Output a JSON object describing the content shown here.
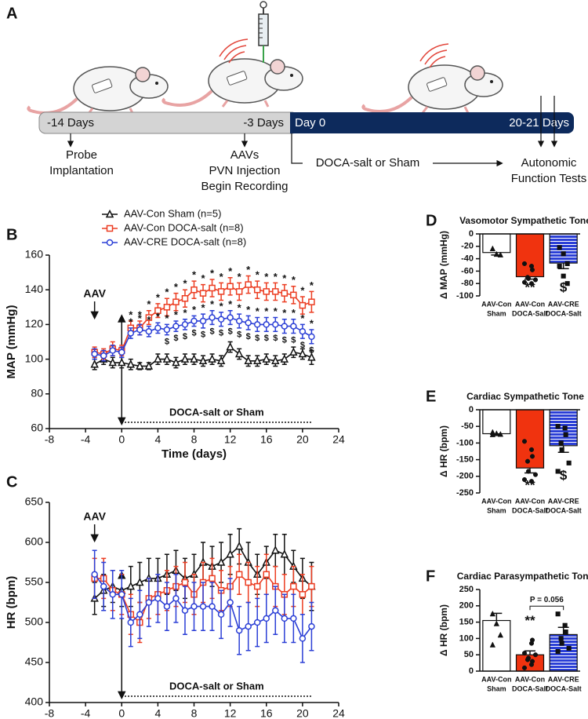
{
  "panel_a": {
    "label": "A",
    "timeline": [
      "-14 Days",
      "-3 Days",
      "Day 0",
      "20-21 Days"
    ],
    "events": [
      [
        "Probe",
        "Implantation"
      ],
      [
        "AAVs",
        "PVN Injection",
        "Begin Recording"
      ],
      [
        "DOCA-salt or Sham"
      ],
      [
        "Autonomic",
        "Function Tests"
      ]
    ]
  },
  "chart_data": [
    {
      "type": "line",
      "panel": "B",
      "x_label": "Time (days)",
      "y_label": "MAP (mmHg)",
      "xlim": [
        -8,
        24
      ],
      "xticks": [
        -8,
        -4,
        0,
        4,
        8,
        12,
        16,
        20,
        24
      ],
      "ylim": [
        60,
        160
      ],
      "yticks": [
        60,
        80,
        100,
        120,
        140,
        160
      ],
      "legend": "upper left",
      "pre_label": "AAV",
      "intervention": {
        "label": "DOCA-salt or Sham",
        "start": 0,
        "end": 21
      },
      "x": [
        -3,
        -2,
        -1,
        0,
        1,
        2,
        3,
        4,
        5,
        6,
        7,
        8,
        9,
        10,
        11,
        12,
        13,
        14,
        15,
        16,
        17,
        18,
        19,
        20,
        21
      ],
      "series": [
        {
          "name": "AAV-Con Sham (n=5)",
          "color": "#111111",
          "marker": "triangle",
          "values": [
            97,
            100,
            98,
            98,
            97,
            96,
            96,
            100,
            100,
            98,
            100,
            100,
            99,
            100,
            99,
            107,
            103,
            99,
            99,
            100,
            99,
            100,
            104,
            103,
            101
          ],
          "errors": [
            3,
            3,
            3,
            3,
            3,
            2,
            2,
            3,
            3,
            3,
            3,
            3,
            3,
            3,
            3,
            3,
            3,
            3,
            3,
            3,
            3,
            3,
            3,
            3,
            4
          ]
        },
        {
          "name": "AAV-Con DOCA-salt (n=8)",
          "color": "#ec3d22",
          "marker": "square",
          "values": [
            104,
            103,
            106,
            105,
            118,
            118,
            124,
            128,
            130,
            133,
            135,
            140,
            138,
            141,
            139,
            142,
            139,
            143,
            140,
            139,
            139,
            138,
            137,
            131,
            133
          ],
          "errors": [
            3,
            3,
            4,
            3,
            4,
            4,
            4,
            4,
            5,
            5,
            5,
            5,
            5,
            5,
            5,
            5,
            5,
            5,
            5,
            5,
            5,
            5,
            5,
            5,
            6
          ],
          "above_labels": [
            null,
            null,
            null,
            null,
            "*",
            "*",
            "*",
            "*",
            "*",
            "*",
            "*",
            "*",
            "*",
            "*",
            "*",
            "*",
            "*",
            "*",
            "*",
            "*",
            "*",
            "*",
            "*",
            "*",
            "*"
          ]
        },
        {
          "name": "AAV-CRE DOCA-salt (n=8)",
          "color": "#2b3fd6",
          "marker": "circle",
          "values": [
            103,
            102,
            105,
            104,
            115,
            117,
            116,
            118,
            117,
            119,
            120,
            122,
            122,
            124,
            123,
            124,
            122,
            121,
            120,
            120,
            120,
            119,
            119,
            116,
            113
          ],
          "errors": [
            3,
            3,
            3,
            3,
            3,
            3,
            3,
            3,
            3,
            3,
            3,
            3,
            4,
            4,
            4,
            4,
            4,
            4,
            4,
            4,
            4,
            4,
            4,
            4,
            4
          ],
          "above_labels": [
            null,
            null,
            null,
            null,
            "*",
            "*",
            "*",
            "*",
            "*",
            "*",
            "*",
            "*",
            "*",
            "*",
            "*",
            "*",
            "*",
            "*",
            "*",
            "*",
            "*",
            "*",
            "*",
            "*",
            "*"
          ],
          "below_labels": [
            null,
            null,
            null,
            null,
            null,
            null,
            null,
            null,
            "$",
            "$",
            "$",
            "$",
            "$",
            "$",
            "$",
            "$",
            "$",
            "$",
            "$",
            "$",
            "$",
            "$",
            "$",
            "$",
            "$"
          ]
        }
      ]
    },
    {
      "type": "line",
      "panel": "C",
      "x_label": "Time (days)",
      "y_label": "HR (bpm)",
      "xlim": [
        -8,
        24
      ],
      "xticks": [
        -8,
        -4,
        0,
        4,
        8,
        12,
        16,
        20,
        24
      ],
      "ylim": [
        400,
        650
      ],
      "yticks": [
        400,
        450,
        500,
        550,
        600,
        650
      ],
      "pre_label": "AAV",
      "intervention": {
        "label": "DOCA-salt or Sham",
        "start": 0,
        "end": 21
      },
      "x": [
        -3,
        -2,
        -1,
        0,
        1,
        2,
        3,
        4,
        5,
        6,
        7,
        8,
        9,
        10,
        11,
        12,
        13,
        14,
        15,
        16,
        17,
        18,
        19,
        20,
        21
      ],
      "series": [
        {
          "name": "AAV-Con Sham (n=5)",
          "color": "#111111",
          "marker": "triangle",
          "values": [
            530,
            540,
            545,
            540,
            545,
            550,
            555,
            555,
            560,
            565,
            555,
            560,
            575,
            570,
            575,
            585,
            595,
            575,
            560,
            575,
            590,
            585,
            570,
            555,
            545
          ],
          "errors": [
            20,
            20,
            20,
            20,
            25,
            25,
            25,
            25,
            25,
            25,
            25,
            25,
            25,
            25,
            25,
            25,
            22,
            25,
            25,
            20,
            20,
            25,
            20,
            25,
            30
          ]
        },
        {
          "name": "AAV-Con DOCA-salt (n=8)",
          "color": "#ec3d22",
          "marker": "square",
          "values": [
            555,
            555,
            540,
            535,
            510,
            500,
            530,
            535,
            540,
            545,
            550,
            535,
            550,
            555,
            540,
            545,
            560,
            550,
            545,
            560,
            545,
            535,
            545,
            535,
            545
          ],
          "errors": [
            25,
            25,
            25,
            25,
            25,
            25,
            25,
            25,
            25,
            25,
            25,
            25,
            25,
            25,
            25,
            25,
            25,
            25,
            25,
            25,
            25,
            25,
            25,
            25,
            25
          ]
        },
        {
          "name": "AAV-CRE DOCA-salt (n=8)",
          "color": "#2b3fd6",
          "marker": "circle",
          "values": [
            560,
            545,
            535,
            535,
            500,
            510,
            525,
            530,
            520,
            530,
            515,
            520,
            520,
            520,
            510,
            525,
            490,
            495,
            500,
            505,
            515,
            505,
            505,
            480,
            495
          ],
          "errors": [
            30,
            30,
            30,
            30,
            30,
            30,
            30,
            30,
            30,
            30,
            30,
            30,
            30,
            30,
            30,
            30,
            30,
            30,
            30,
            30,
            30,
            30,
            30,
            30,
            30
          ]
        }
      ]
    },
    {
      "type": "bar",
      "panel": "D",
      "title": "Vasomotor Sympathetic Tone",
      "y_label": "Δ MAP (mmHg)",
      "categories": [
        [
          "AAV-Con",
          "Sham"
        ],
        [
          "AAV-Con",
          "DOCA-Salt"
        ],
        [
          "AAV-CRE",
          "DOCA-Salt"
        ]
      ],
      "values": [
        -30,
        -69,
        -47
      ],
      "errors": [
        4,
        4,
        9
      ],
      "colors": [
        "#ffffff",
        "#f0330f",
        "#2b3fd6"
      ],
      "hatch": [
        false,
        false,
        true
      ],
      "point_markers": [
        "triangle",
        "circle",
        "square"
      ],
      "points": [
        [
          -24,
          -33,
          -34
        ],
        [
          -48,
          -52,
          -58,
          -70,
          -72,
          -74,
          -78,
          -80
        ],
        [
          -22,
          -32,
          -48,
          -52,
          -68,
          -80
        ]
      ],
      "significance": [
        null,
        "**",
        "$"
      ],
      "ylim": [
        -100,
        0
      ],
      "yticks": [
        -100,
        -80,
        -60,
        -40,
        -20,
        0
      ]
    },
    {
      "type": "bar",
      "panel": "E",
      "title": "Cardiac Sympathetic Tone",
      "y_label": "Δ HR (bpm)",
      "categories": [
        [
          "AAV-Con",
          "Sham"
        ],
        [
          "AAV-Con",
          "DOCA-Salt"
        ],
        [
          "AAV-CRE",
          "DOCA-Salt"
        ]
      ],
      "values": [
        -72,
        -175,
        -108
      ],
      "errors": [
        3,
        15,
        20
      ],
      "colors": [
        "#ffffff",
        "#f0330f",
        "#2b3fd6"
      ],
      "hatch": [
        false,
        false,
        true
      ],
      "point_markers": [
        "triangle",
        "circle",
        "square"
      ],
      "points": [
        [
          -68,
          -72,
          -74,
          -75
        ],
        [
          -95,
          -120,
          -140,
          -155,
          -185,
          -195,
          -210,
          -215
        ],
        [
          -50,
          -55,
          -75,
          -100,
          -120,
          -160,
          -185
        ]
      ],
      "significance": [
        null,
        "**",
        "$"
      ],
      "ylim": [
        -250,
        0
      ],
      "yticks": [
        -250,
        -200,
        -150,
        -100,
        -50,
        0
      ]
    },
    {
      "type": "bar",
      "panel": "F",
      "title": "Cardiac Parasympathetic Tone",
      "y_label": "Δ HR (bpm)",
      "categories": [
        [
          "AAV-Con",
          "Sham"
        ],
        [
          "AAV-Con",
          "DOCA-Salt"
        ],
        [
          "AAV-CRE",
          "DOCA-Salt"
        ]
      ],
      "values": [
        155,
        50,
        112
      ],
      "errors": [
        22,
        12,
        22
      ],
      "colors": [
        "#ffffff",
        "#f0330f",
        "#2b3fd6"
      ],
      "hatch": [
        false,
        false,
        true
      ],
      "point_markers": [
        "triangle",
        "circle",
        "square"
      ],
      "points": [
        [
          175,
          145,
          110,
          80
        ],
        [
          10,
          20,
          30,
          35,
          40,
          50,
          55,
          85,
          95
        ],
        [
          175,
          140,
          120,
          100,
          85,
          70,
          60
        ]
      ],
      "significance": [
        null,
        "**",
        null
      ],
      "bracket_label": "P = 0.056",
      "ylim": [
        0,
        250
      ],
      "yticks": [
        0,
        50,
        100,
        150,
        200,
        250
      ]
    }
  ]
}
